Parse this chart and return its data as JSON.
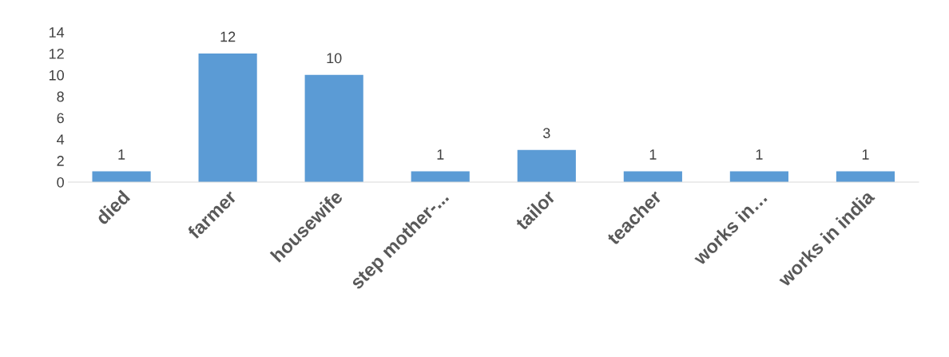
{
  "chart_data": {
    "type": "bar",
    "categories": [
      "died",
      "farmer",
      "housewife",
      "step mother-...",
      "tailor",
      "teacher",
      "works in…",
      "works in india"
    ],
    "values": [
      1,
      12,
      10,
      1,
      3,
      1,
      1,
      1
    ],
    "color": "#5b9bd5",
    "ylim": [
      0,
      14
    ],
    "yticks": [
      0,
      2,
      4,
      6,
      8,
      10,
      12,
      14
    ],
    "data_labels": true,
    "grid": false,
    "legend": false
  }
}
